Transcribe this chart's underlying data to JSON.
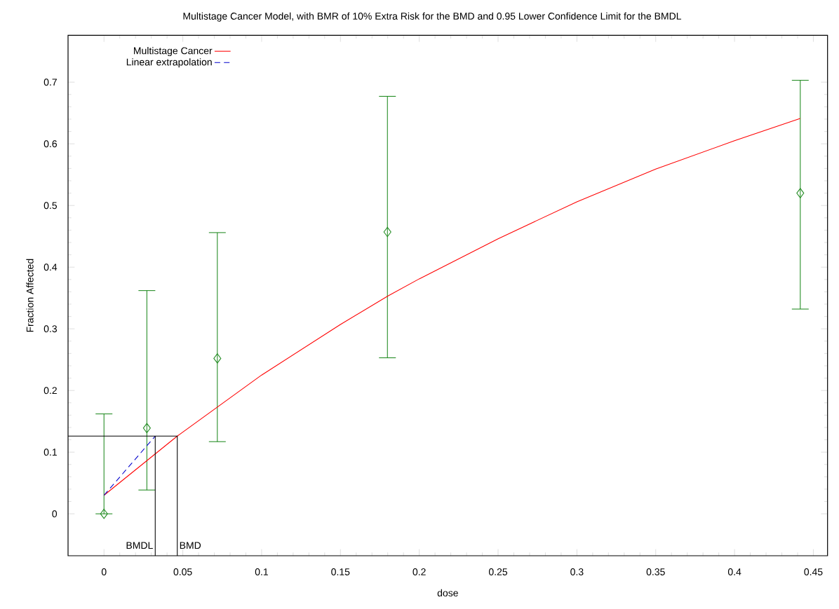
{
  "chart_data": {
    "type": "scatter",
    "title": "Multistage Cancer Model, with BMR of 10% Extra Risk for the BMD and 0.95 Lower Confidence Limit for the BMDL",
    "xlabel": "dose",
    "ylabel": "Fraction Affected",
    "xlim": [
      -0.0228,
      0.459
    ],
    "ylim": [
      -0.068,
      0.776
    ],
    "xticks": [
      0,
      0.05,
      0.1,
      0.15,
      0.2,
      0.25,
      0.3,
      0.35,
      0.4,
      0.45
    ],
    "yticks": [
      0,
      0.1,
      0.2,
      0.3,
      0.4,
      0.5,
      0.6,
      0.7
    ],
    "grid": false,
    "legend": "top left",
    "annotations": [
      {
        "text": "BMDL",
        "x": 0.0325,
        "y": -0.06
      },
      {
        "text": "BMD",
        "x": 0.0465,
        "y": -0.06
      }
    ],
    "series": [
      {
        "color": "#228b22",
        "marker": "diamond",
        "x": [
          0,
          0.0272,
          0.0719,
          0.1798,
          0.4417
        ],
        "values": [
          0,
          0.139,
          0.252,
          0.457,
          0.52
        ],
        "errors": [
          [
            0,
            0.162
          ],
          [
            0.0386,
            0.362
          ],
          [
            0.117,
            0.456
          ],
          [
            0.253,
            0.677
          ],
          [
            0.332,
            0.703
          ]
        ]
      },
      {
        "type": "line",
        "name": "Multistage Cancer",
        "color": "#ff0000",
        "line_style": "solid",
        "x": [
          0,
          0.0465,
          0.1,
          0.15,
          0.18,
          0.2,
          0.25,
          0.3,
          0.35,
          0.4,
          0.4417
        ],
        "values": [
          0.03,
          0.126,
          0.225,
          0.307,
          0.353,
          0.381,
          0.446,
          0.506,
          0.559,
          0.605,
          0.641
        ]
      },
      {
        "type": "line",
        "name": "Linear extrapolation",
        "color": "#0000cc",
        "line_style": "dashed",
        "x": [
          0,
          0.0325
        ],
        "values": [
          0.03,
          0.126
        ]
      },
      {
        "type": "line",
        "color": "#000000",
        "line_style": "solid",
        "x": [
          -0.0228,
          0.0465,
          0.0465
        ],
        "values": [
          0.126,
          0.126,
          -0.068
        ]
      },
      {
        "type": "line",
        "color": "#000000",
        "line_style": "solid",
        "x": [
          0.0325,
          0.0325
        ],
        "values": [
          0.126,
          -0.068
        ]
      }
    ]
  }
}
